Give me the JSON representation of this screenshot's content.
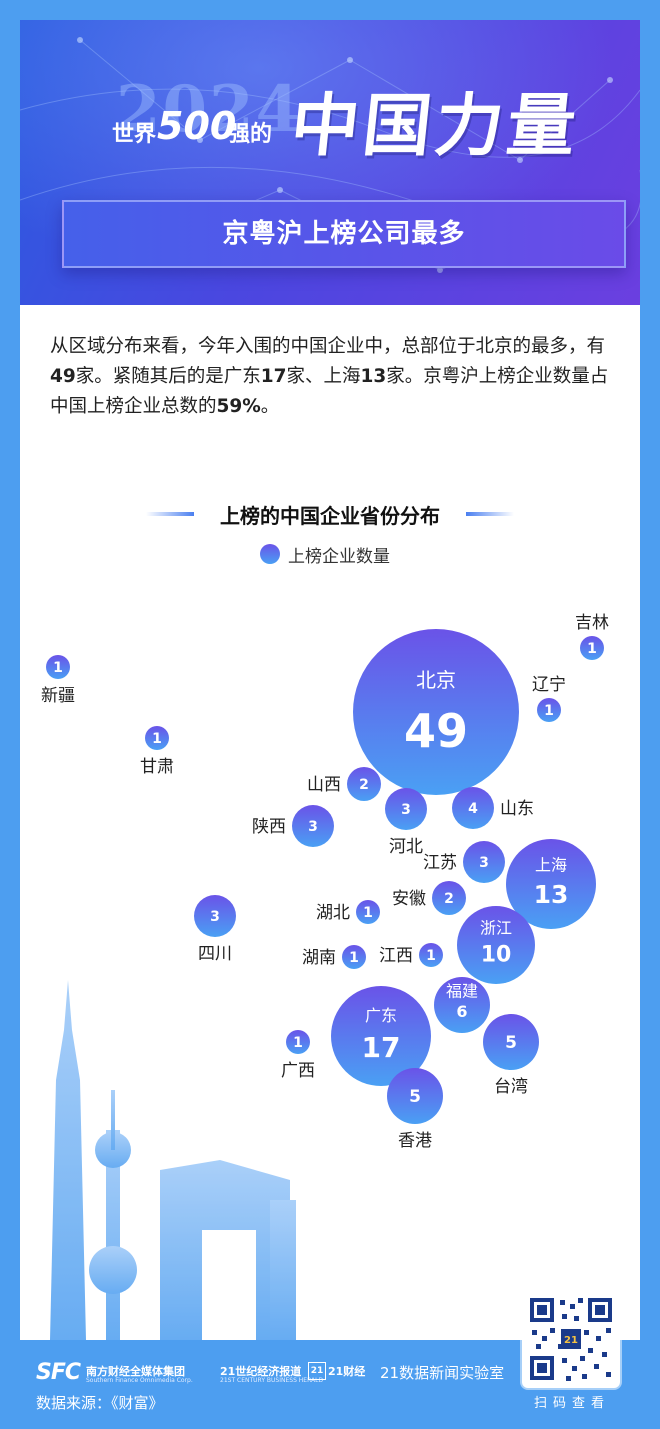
{
  "header": {
    "year": "2024",
    "prefix": "世界",
    "number": "500",
    "suffix": "强的",
    "title": "中国力量",
    "subtitle": "京粤沪上榜公司最多"
  },
  "intro": {
    "part1": "从区域分布来看，今年入围的中国企业中，总部位于北京的最多，有",
    "beijing_count": "49",
    "part2": "家。紧随其后的是广东",
    "guangdong_count": "17",
    "part3": "家、上海",
    "shanghai_count": "13",
    "part4": "家。京粤沪上榜企业数量占中国上榜企业总数的",
    "share": "59%",
    "part5": "。"
  },
  "colors": {
    "bubble_top": "#6a53e8",
    "bubble_bottom": "#4aa0f4",
    "background": "#4d9ef0",
    "hero_start": "#2b5be0",
    "hero_end": "#6b3fe0"
  },
  "chart_data": {
    "type": "bubble",
    "title": "上榜的中国企业省份分布",
    "legend": "上榜企业数量",
    "points": [
      {
        "name": "北京",
        "value": 49
      },
      {
        "name": "广东",
        "value": 17
      },
      {
        "name": "上海",
        "value": 13
      },
      {
        "name": "浙江",
        "value": 10
      },
      {
        "name": "福建",
        "value": 6
      },
      {
        "name": "台湾",
        "value": 5
      },
      {
        "name": "香港",
        "value": 5
      },
      {
        "name": "山东",
        "value": 4
      },
      {
        "name": "陕西",
        "value": 3
      },
      {
        "name": "河北",
        "value": 3
      },
      {
        "name": "江苏",
        "value": 3
      },
      {
        "name": "四川",
        "value": 3
      },
      {
        "name": "山西",
        "value": 2
      },
      {
        "name": "安徽",
        "value": 2
      },
      {
        "name": "吉林",
        "value": 1
      },
      {
        "name": "辽宁",
        "value": 1
      },
      {
        "name": "新疆",
        "value": 1
      },
      {
        "name": "甘肃",
        "value": 1
      },
      {
        "name": "湖北",
        "value": 1
      },
      {
        "name": "湖南",
        "value": 1
      },
      {
        "name": "江西",
        "value": 1
      },
      {
        "name": "广西",
        "value": 1
      }
    ]
  },
  "footer": {
    "logo_sfc": "SFC",
    "logo_sfc_name": "南方财经全媒体集团",
    "logo_sfc_en": "Southern Finance Omnimedia Corp.",
    "logo_21a": "21世纪经济报道",
    "logo_21a_en": "21ST CENTURY BUSINESS HERALD",
    "logo_21b_box": "21",
    "logo_21b": "21财经",
    "logo_21c": "21数据新闻实验室",
    "source": "数据来源：《财富》",
    "qr_label": "扫码查看",
    "qr_badge": "21"
  }
}
